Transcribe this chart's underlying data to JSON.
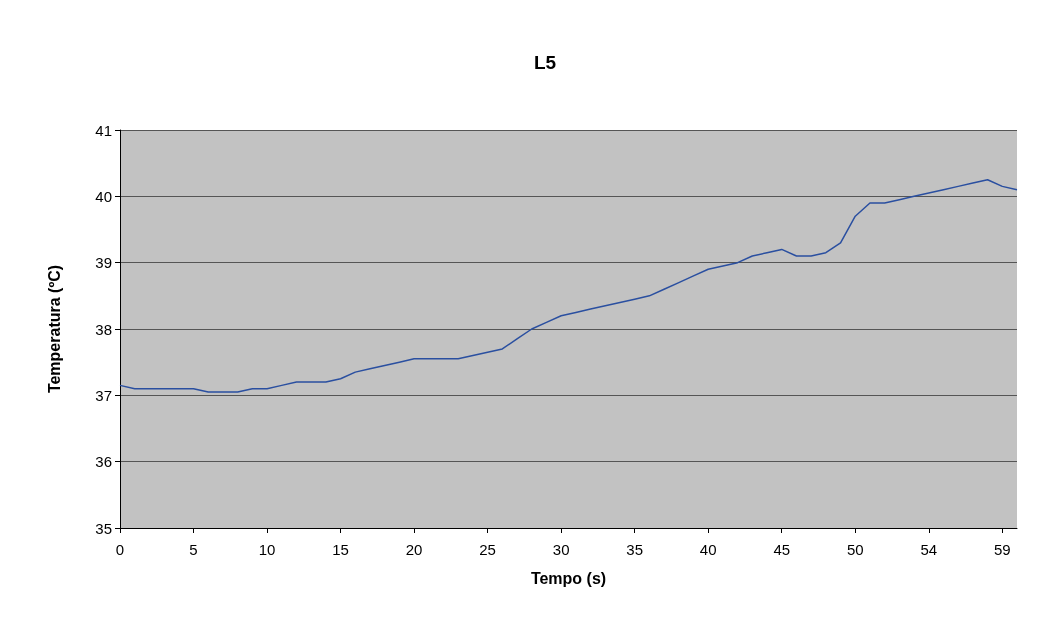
{
  "chart_data": {
    "type": "line",
    "title": "L5",
    "xlabel": "Tempo (s)",
    "ylabel": "Temperatura (ºC)",
    "categories": [
      "0",
      null,
      null,
      null,
      null,
      "5",
      null,
      null,
      null,
      null,
      "10",
      null,
      null,
      null,
      null,
      "15",
      null,
      null,
      null,
      null,
      "20",
      null,
      null,
      null,
      null,
      "25",
      null,
      null,
      null,
      null,
      "30",
      null,
      null,
      null,
      null,
      "35",
      null,
      null,
      null,
      null,
      "40",
      null,
      null,
      null,
      null,
      "45",
      null,
      null,
      null,
      null,
      "50",
      null,
      null,
      null,
      null,
      "54",
      null,
      null,
      null,
      null,
      "59",
      null
    ],
    "series": [
      {
        "color": "#2a4fa0",
        "values": [
          37.15,
          37.1,
          37.1,
          37.1,
          37.1,
          37.1,
          37.05,
          37.05,
          37.05,
          37.1,
          37.1,
          37.15,
          37.2,
          37.2,
          37.2,
          37.25,
          37.35,
          37.4,
          37.45,
          37.5,
          37.55,
          37.55,
          37.55,
          37.55,
          37.6,
          37.65,
          37.7,
          37.85,
          38.0,
          38.1,
          38.2,
          38.25,
          38.3,
          38.35,
          38.4,
          38.45,
          38.5,
          38.6,
          38.7,
          38.8,
          38.9,
          38.95,
          39.0,
          39.1,
          39.15,
          39.2,
          39.1,
          39.1,
          39.15,
          39.3,
          39.7,
          39.9,
          39.9,
          39.95,
          40.0,
          40.05,
          40.1,
          40.15,
          40.2,
          40.25,
          40.15,
          40.1
        ]
      }
    ],
    "ylim": [
      35,
      41
    ],
    "yticks": [
      35,
      36,
      37,
      38,
      39,
      40,
      41
    ],
    "grid": "y",
    "marker": "none",
    "line_style": "solid"
  }
}
